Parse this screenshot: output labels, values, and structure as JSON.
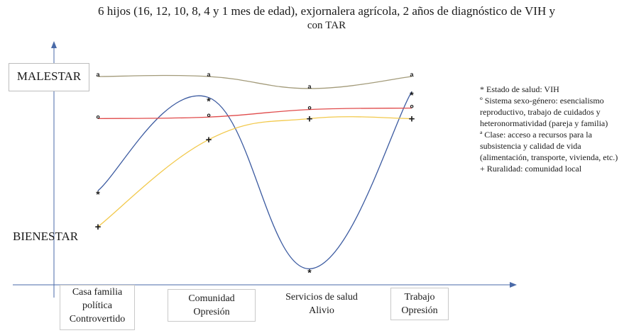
{
  "title_line1_pre": "6 hijos (16, 12, 10, 8, 4 y 1 mes de edad), exjornalera agrícola, 2 años de diagnóstico de ",
  "title_line1_sc": "VIH",
  "title_line1_post": " y",
  "title_line2_pre": "con ",
  "title_line2_sc": "TAR",
  "y_top_label": "MALESTAR",
  "y_bottom_label": "BIENESTAR",
  "categories": [
    {
      "line1": "Casa familia",
      "line2": "política",
      "line3": "Controvertido"
    },
    {
      "line1": "Comunidad",
      "line2": "Opresión"
    },
    {
      "line1": "Servicios de salud",
      "line2": "Alivio"
    },
    {
      "line1": "Trabajo",
      "line2": "Opresión"
    }
  ],
  "legend": [
    "* Estado de salud: VIH",
    "º Sistema sexo-género: esencialismo reproductivo, trabajo de cuidados y heteronormatividad (pareja y familia)",
    "ª Clase: acceso a recursos para la subsistencia y calidad de vida (alimentación, transporte, vivienda, etc.)",
    "+ Ruralidad: comunidad local"
  ],
  "chart_data": {
    "type": "line",
    "categories": [
      "Casa familia política",
      "Comunidad",
      "Servicios de salud",
      "Trabajo"
    ],
    "y_axis_top": "MALESTAR",
    "y_axis_bottom": "BIENESTAR",
    "series": [
      {
        "marker": "*",
        "color": "#3b5aa0",
        "values": [
          0.24,
          0.86,
          -0.28,
          0.9
        ]
      },
      {
        "marker": "º",
        "color": "#e04b4b",
        "values": [
          0.72,
          0.73,
          0.78,
          0.79
        ]
      },
      {
        "marker": "ª",
        "color": "#a39b7a",
        "values": [
          1.0,
          1.0,
          0.92,
          1.0
        ]
      },
      {
        "marker": "+",
        "color": "#f2c94c",
        "values": [
          0.0,
          0.58,
          0.72,
          0.72
        ]
      }
    ],
    "ylim": [
      -0.4,
      1.05
    ]
  }
}
